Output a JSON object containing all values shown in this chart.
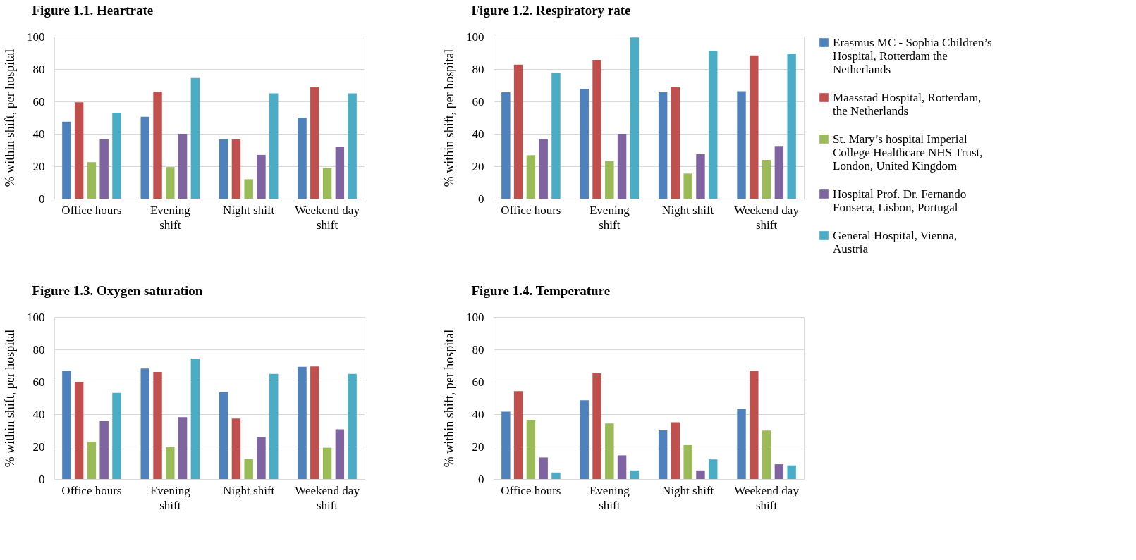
{
  "chart_data": [
    {
      "type": "bar",
      "title": "Figure 1.1. Heartrate",
      "ylabel": "% within shift, per hospital",
      "categories": [
        "Office hours",
        "Evening shift",
        "Night shift",
        "Weekend day shift"
      ],
      "series": [
        {
          "color": "#4f81bd",
          "values": [
            47.5,
            50.5,
            36.5,
            50
          ]
        },
        {
          "color": "#c0504d",
          "values": [
            59.5,
            66,
            36.5,
            69
          ]
        },
        {
          "color": "#9bbb59",
          "values": [
            22.5,
            19.5,
            12,
            19
          ]
        },
        {
          "color": "#8064a2",
          "values": [
            36.5,
            40,
            27,
            32
          ]
        },
        {
          "color": "#4bacc6",
          "values": [
            53,
            74.5,
            65,
            65
          ]
        }
      ],
      "ylim": [
        0,
        100
      ],
      "yticks": [
        0,
        20,
        40,
        60,
        80,
        100
      ],
      "grid": "y",
      "legend": false
    },
    {
      "type": "bar",
      "title": "Figure 1.2. Respiratory rate",
      "ylabel": "% within shift, per hospital",
      "categories": [
        "Office hours",
        "Evening shift",
        "Night shift",
        "Weekend day shift"
      ],
      "series": [
        {
          "name": "Erasmus MC - Sophia Children’s Hospital, Rotterdam the Netherlands",
          "color": "#4f81bd",
          "values": [
            65.6,
            67.8,
            65.6,
            66.3
          ]
        },
        {
          "name": "Maasstad Hospital, Rotterdam, the Netherlands",
          "color": "#c0504d",
          "values": [
            82.7,
            85.7,
            68.7,
            88.4
          ]
        },
        {
          "name": "St. Mary’s hospital Imperial College Healthcare NHS Trust, London, United Kingdom",
          "color": "#9bbb59",
          "values": [
            26.8,
            23.1,
            15.5,
            23.9
          ]
        },
        {
          "name": "Hospital Prof. Dr. Fernando Fonseca, Lisbon, Portugal",
          "color": "#8064a2",
          "values": [
            36.6,
            40,
            27.4,
            32.5
          ]
        },
        {
          "name": "General Hospital, Vienna, Austria",
          "color": "#4bacc6",
          "values": [
            77.5,
            99.5,
            91.2,
            89.5
          ]
        }
      ],
      "ylim": [
        0,
        100
      ],
      "yticks": [
        0,
        20,
        40,
        60,
        80,
        100
      ],
      "grid": "y",
      "legend": "right"
    },
    {
      "type": "bar",
      "title": "Figure 1.3. Oxygen saturation",
      "ylabel": "% within shift, per hospital",
      "categories": [
        "Office hours",
        "Evening shift",
        "Night shift",
        "Weekend day shift"
      ],
      "series": [
        {
          "color": "#4f81bd",
          "values": [
            66.7,
            68.1,
            53.6,
            69.2
          ]
        },
        {
          "color": "#c0504d",
          "values": [
            59.9,
            66.1,
            37.3,
            69.5
          ]
        },
        {
          "color": "#9bbb59",
          "values": [
            23.1,
            19.7,
            12.4,
            19.3
          ]
        },
        {
          "color": "#8064a2",
          "values": [
            35.6,
            38.1,
            25.9,
            30.7
          ]
        },
        {
          "color": "#4bacc6",
          "values": [
            53.2,
            74.3,
            64.9,
            64.9
          ]
        }
      ],
      "ylim": [
        0,
        100
      ],
      "yticks": [
        0,
        20,
        40,
        60,
        80,
        100
      ],
      "grid": "y",
      "legend": false
    },
    {
      "type": "bar",
      "title": "Figure 1.4. Temperature",
      "ylabel": "% within shift, per hospital",
      "categories": [
        "Office hours",
        "Evening shift",
        "Night shift",
        "Weekend day shift"
      ],
      "series": [
        {
          "color": "#4f81bd",
          "values": [
            41.5,
            48.6,
            30,
            43.3
          ]
        },
        {
          "color": "#c0504d",
          "values": [
            54.2,
            65.2,
            35,
            66.7
          ]
        },
        {
          "color": "#9bbb59",
          "values": [
            36.5,
            34.2,
            20.9,
            29.9
          ]
        },
        {
          "color": "#8064a2",
          "values": [
            13.3,
            14.6,
            5.3,
            9.1
          ]
        },
        {
          "color": "#4bacc6",
          "values": [
            4,
            5.3,
            12.1,
            8.4
          ]
        }
      ],
      "ylim": [
        0,
        100
      ],
      "yticks": [
        0,
        20,
        40,
        60,
        80,
        100
      ],
      "grid": "y",
      "legend": false
    }
  ]
}
